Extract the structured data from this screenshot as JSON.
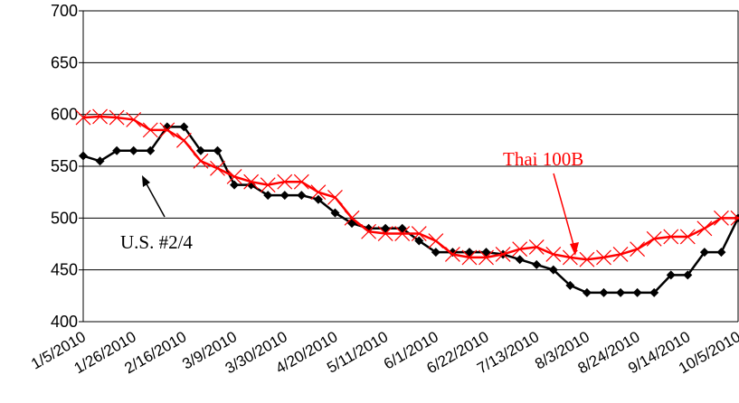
{
  "chart_data": {
    "type": "line",
    "categories": [
      "1/5/2010",
      null,
      null,
      "1/26/2010",
      null,
      null,
      "2/16/2010",
      null,
      null,
      "3/9/2010",
      null,
      null,
      "3/30/2010",
      null,
      null,
      "4/20/2010",
      null,
      null,
      "5/11/2010",
      null,
      null,
      "6/1/2010",
      null,
      null,
      "6/22/2010",
      null,
      null,
      "7/13/2010",
      null,
      null,
      "8/3/2010",
      null,
      null,
      "8/24/2010",
      null,
      null,
      "9/14/2010",
      null,
      null,
      "10/5/2010"
    ],
    "series": [
      {
        "name": "U.S. #2/4",
        "color": "#000000",
        "marker": "diamond",
        "values": [
          560,
          555,
          565,
          565,
          565,
          588,
          588,
          565,
          565,
          532,
          532,
          522,
          522,
          522,
          518,
          505,
          495,
          490,
          490,
          490,
          478,
          467,
          467,
          467,
          467,
          465,
          460,
          455,
          450,
          435,
          428,
          428,
          428,
          428,
          428,
          445,
          445,
          467,
          467,
          500
        ]
      },
      {
        "name": "Thai 100B",
        "color": "#ff0000",
        "marker": "x",
        "values": [
          597,
          598,
          597,
          595,
          585,
          585,
          575,
          555,
          548,
          540,
          535,
          532,
          535,
          535,
          525,
          520,
          500,
          487,
          485,
          485,
          485,
          478,
          465,
          462,
          462,
          465,
          470,
          472,
          465,
          462,
          460,
          462,
          465,
          470,
          480,
          482,
          482,
          490,
          500,
          500
        ]
      }
    ],
    "ylim": [
      400,
      700
    ],
    "yticks": [
      400,
      450,
      500,
      550,
      600,
      650,
      700
    ],
    "grid": true
  }
}
